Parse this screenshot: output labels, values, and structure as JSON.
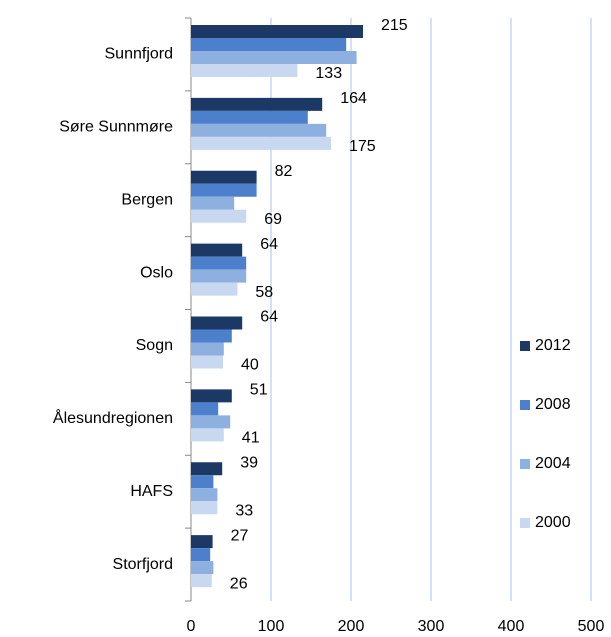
{
  "chart_data": {
    "type": "hbar",
    "categories": [
      "Sunnfjord",
      "Søre Sunnmøre",
      "Bergen",
      "Oslo",
      "Sogn",
      "Ålesundregionen",
      "HAFS",
      "Storfjord"
    ],
    "series": [
      {
        "name": "2012",
        "color": "#1c3966",
        "show_labels": true,
        "values": [
          215,
          164,
          82,
          64,
          64,
          51,
          39,
          27
        ]
      },
      {
        "name": "2008",
        "color": "#4d80cc",
        "show_labels": false,
        "values": [
          194,
          146,
          82,
          69,
          51,
          34,
          28,
          24
        ]
      },
      {
        "name": "2004",
        "color": "#8eb0e0",
        "show_labels": false,
        "values": [
          207,
          169,
          54,
          69,
          41,
          49,
          33,
          28
        ]
      },
      {
        "name": "2000",
        "color": "#c8d8f0",
        "show_labels": true,
        "values": [
          133,
          175,
          69,
          58,
          40,
          41,
          33,
          26
        ]
      }
    ],
    "xlim": [
      0,
      500
    ],
    "xticks": [
      0,
      100,
      200,
      300,
      400,
      500
    ],
    "grid": true,
    "legend": "right"
  }
}
